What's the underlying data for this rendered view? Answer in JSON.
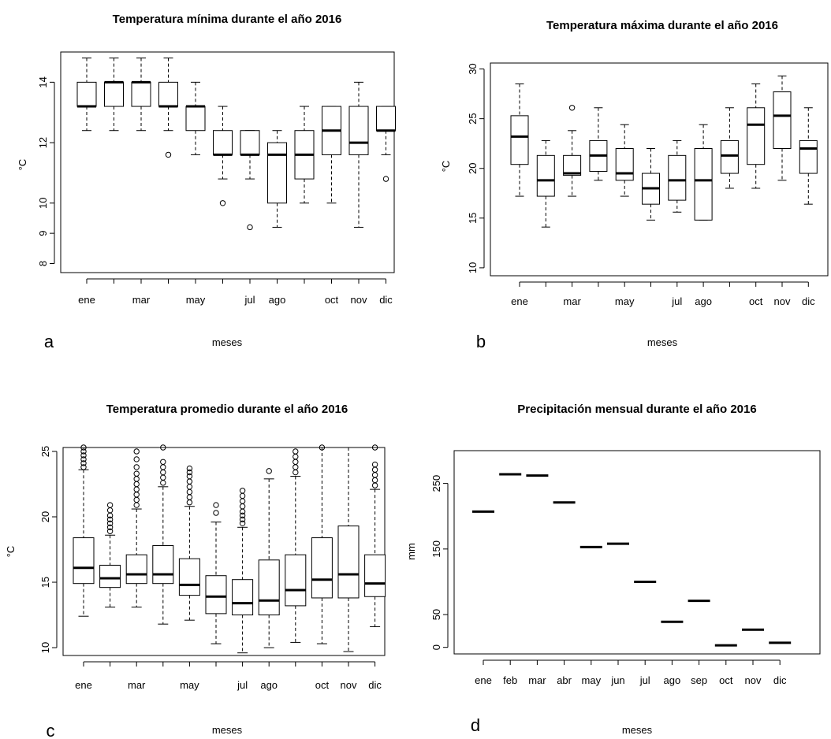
{
  "chart_data": [
    {
      "panel": "a",
      "type": "boxplot",
      "title": "Temperatura mínima durante el año 2016",
      "xlabel": "meses",
      "ylabel": "°C",
      "yticks": [
        8,
        9,
        10,
        12,
        14
      ],
      "ylim": [
        7.7,
        15.0
      ],
      "categories": [
        "ene",
        "feb",
        "mar",
        "abr",
        "may",
        "jun",
        "jul",
        "ago",
        "sep",
        "oct",
        "nov",
        "dic"
      ],
      "x_tick_labels": [
        "ene",
        "",
        "mar",
        "",
        "may",
        "",
        "jul",
        "ago",
        "",
        "oct",
        "nov",
        "dic"
      ],
      "boxes": [
        {
          "lo": 12.4,
          "q1": 13.2,
          "med": 13.2,
          "q3": 14.0,
          "hi": 14.8,
          "out": []
        },
        {
          "lo": 12.4,
          "q1": 13.2,
          "med": 14.0,
          "q3": 14.0,
          "hi": 14.8,
          "out": []
        },
        {
          "lo": 12.4,
          "q1": 13.2,
          "med": 14.0,
          "q3": 14.0,
          "hi": 14.8,
          "out": []
        },
        {
          "lo": 12.4,
          "q1": 13.2,
          "med": 13.2,
          "q3": 14.0,
          "hi": 14.8,
          "out": [
            11.6
          ]
        },
        {
          "lo": 11.6,
          "q1": 12.4,
          "med": 13.2,
          "q3": 13.2,
          "hi": 14.0,
          "out": []
        },
        {
          "lo": 10.8,
          "q1": 11.6,
          "med": 11.6,
          "q3": 12.4,
          "hi": 13.2,
          "out": [
            10.0
          ]
        },
        {
          "lo": 10.8,
          "q1": 11.6,
          "med": 11.6,
          "q3": 12.4,
          "hi": 12.4,
          "out": [
            9.2
          ]
        },
        {
          "lo": 9.2,
          "q1": 10.0,
          "med": 11.6,
          "q3": 12.0,
          "hi": 12.4,
          "out": []
        },
        {
          "lo": 10.0,
          "q1": 10.8,
          "med": 11.6,
          "q3": 12.4,
          "hi": 13.2,
          "out": []
        },
        {
          "lo": 10.0,
          "q1": 11.6,
          "med": 12.4,
          "q3": 13.2,
          "hi": 13.2,
          "out": []
        },
        {
          "lo": 9.2,
          "q1": 11.6,
          "med": 12.0,
          "q3": 13.2,
          "hi": 14.0,
          "out": []
        },
        {
          "lo": 11.6,
          "q1": 12.4,
          "med": 12.4,
          "q3": 13.2,
          "hi": 13.2,
          "out": [
            10.8
          ]
        }
      ]
    },
    {
      "panel": "b",
      "type": "boxplot",
      "title": "Temperatura máxima durante el año 2016",
      "xlabel": "meses",
      "ylabel": "°C",
      "yticks": [
        10,
        15,
        20,
        25,
        30
      ],
      "ylim": [
        9.2,
        30.6
      ],
      "categories": [
        "ene",
        "feb",
        "mar",
        "abr",
        "may",
        "jun",
        "jul",
        "ago",
        "sep",
        "oct",
        "nov",
        "dic"
      ],
      "x_tick_labels": [
        "ene",
        "",
        "mar",
        "",
        "may",
        "",
        "jul",
        "ago",
        "",
        "oct",
        "nov",
        "dic"
      ],
      "boxes": [
        {
          "lo": 17.2,
          "q1": 20.4,
          "med": 23.2,
          "q3": 25.3,
          "hi": 28.5,
          "out": []
        },
        {
          "lo": 14.1,
          "q1": 17.2,
          "med": 18.8,
          "q3": 21.3,
          "hi": 22.8,
          "out": []
        },
        {
          "lo": 17.2,
          "q1": 19.3,
          "med": 19.5,
          "q3": 21.3,
          "hi": 23.8,
          "out": [
            26.1
          ]
        },
        {
          "lo": 18.8,
          "q1": 19.7,
          "med": 21.3,
          "q3": 22.8,
          "hi": 26.1,
          "out": []
        },
        {
          "lo": 17.2,
          "q1": 18.8,
          "med": 19.5,
          "q3": 22.0,
          "hi": 24.4,
          "out": []
        },
        {
          "lo": 14.8,
          "q1": 16.4,
          "med": 18.0,
          "q3": 19.5,
          "hi": 22.0,
          "out": []
        },
        {
          "lo": 15.6,
          "q1": 16.8,
          "med": 18.8,
          "q3": 21.3,
          "hi": 22.8,
          "out": []
        },
        {
          "lo": 14.8,
          "q1": 14.8,
          "med": 18.8,
          "q3": 22.0,
          "hi": 24.4,
          "out": []
        },
        {
          "lo": 18.0,
          "q1": 19.5,
          "med": 21.3,
          "q3": 22.8,
          "hi": 26.1,
          "out": []
        },
        {
          "lo": 18.0,
          "q1": 20.4,
          "med": 24.4,
          "q3": 26.1,
          "hi": 28.5,
          "out": []
        },
        {
          "lo": 18.8,
          "q1": 22.0,
          "med": 25.3,
          "q3": 27.7,
          "hi": 29.3,
          "out": []
        },
        {
          "lo": 16.4,
          "q1": 19.5,
          "med": 22.0,
          "q3": 22.8,
          "hi": 26.1,
          "out": []
        }
      ]
    },
    {
      "panel": "c",
      "type": "boxplot",
      "title": "Temperatura promedio durante el año 2016",
      "xlabel": "meses",
      "ylabel": "°C",
      "yticks": [
        10,
        15,
        20,
        25
      ],
      "ylim": [
        9.4,
        25.3
      ],
      "categories": [
        "ene",
        "feb",
        "mar",
        "abr",
        "may",
        "jun",
        "jul",
        "ago",
        "sep",
        "oct",
        "nov",
        "dic"
      ],
      "x_tick_labels": [
        "ene",
        "",
        "mar",
        "",
        "may",
        "",
        "jul",
        "ago",
        "",
        "oct",
        "nov",
        "dic"
      ],
      "boxes": [
        {
          "lo": 12.4,
          "q1": 14.9,
          "med": 16.1,
          "q3": 18.4,
          "hi": 23.6,
          "out": [
            23.8,
            24.1,
            24.4,
            24.7,
            25.0,
            25.3
          ]
        },
        {
          "lo": 13.1,
          "q1": 14.6,
          "med": 15.3,
          "q3": 16.3,
          "hi": 18.6,
          "out": [
            18.9,
            19.2,
            19.5,
            19.8,
            20.1,
            20.5,
            20.9
          ]
        },
        {
          "lo": 13.1,
          "q1": 14.9,
          "med": 15.6,
          "q3": 17.1,
          "hi": 20.6,
          "out": [
            20.9,
            21.3,
            21.7,
            22.1,
            22.5,
            22.9,
            23.3,
            23.8,
            24.4,
            25.0
          ]
        },
        {
          "lo": 11.8,
          "q1": 14.9,
          "med": 15.6,
          "q3": 17.8,
          "hi": 22.3,
          "out": [
            22.6,
            23.0,
            23.4,
            23.8,
            24.2,
            25.3
          ]
        },
        {
          "lo": 12.1,
          "q1": 14.0,
          "med": 14.8,
          "q3": 16.8,
          "hi": 20.8,
          "out": [
            21.1,
            21.5,
            21.9,
            22.3,
            22.7,
            23.1,
            23.4,
            23.7
          ]
        },
        {
          "lo": 10.3,
          "q1": 12.6,
          "med": 13.9,
          "q3": 15.5,
          "hi": 19.6,
          "out": [
            20.3,
            20.9
          ]
        },
        {
          "lo": 9.6,
          "q1": 12.5,
          "med": 13.4,
          "q3": 15.2,
          "hi": 19.2,
          "out": [
            19.5,
            19.8,
            20.1,
            20.4,
            20.8,
            21.2,
            21.6,
            22.0
          ]
        },
        {
          "lo": 10.0,
          "q1": 12.5,
          "med": 13.6,
          "q3": 16.7,
          "hi": 22.9,
          "out": [
            23.5
          ]
        },
        {
          "lo": 10.4,
          "q1": 13.2,
          "med": 14.4,
          "q3": 17.1,
          "hi": 23.1,
          "out": [
            23.4,
            23.8,
            24.2,
            24.6,
            25.0
          ]
        },
        {
          "lo": 10.3,
          "q1": 13.8,
          "med": 15.2,
          "q3": 18.4,
          "hi": 25.3,
          "out": [
            25.3
          ]
        },
        {
          "lo": 9.7,
          "q1": 13.8,
          "med": 15.6,
          "q3": 19.3,
          "hi": 25.3,
          "out": []
        },
        {
          "lo": 11.6,
          "q1": 13.9,
          "med": 14.9,
          "q3": 17.1,
          "hi": 22.1,
          "out": [
            22.4,
            22.8,
            23.2,
            23.6,
            24.0,
            25.3
          ]
        }
      ]
    },
    {
      "panel": "d",
      "type": "boxplot",
      "title": "Precipitación mensual durante el año 2016",
      "xlabel": "meses",
      "ylabel": "mm",
      "yticks": [
        0,
        50,
        150,
        250
      ],
      "ylim": [
        -10,
        300
      ],
      "categories": [
        "ene",
        "feb",
        "mar",
        "abr",
        "may",
        "jun",
        "jul",
        "ago",
        "sep",
        "oct",
        "nov",
        "dic"
      ],
      "x_tick_labels": [
        "ene",
        "feb",
        "mar",
        "abr",
        "may",
        "jun",
        "jul",
        "ago",
        "sep",
        "oct",
        "nov",
        "dic"
      ],
      "values": [
        207,
        264,
        262,
        221,
        153,
        158,
        100,
        39,
        71,
        3,
        27,
        7
      ]
    }
  ],
  "panel_labels": [
    "a",
    "b",
    "c",
    "d"
  ]
}
